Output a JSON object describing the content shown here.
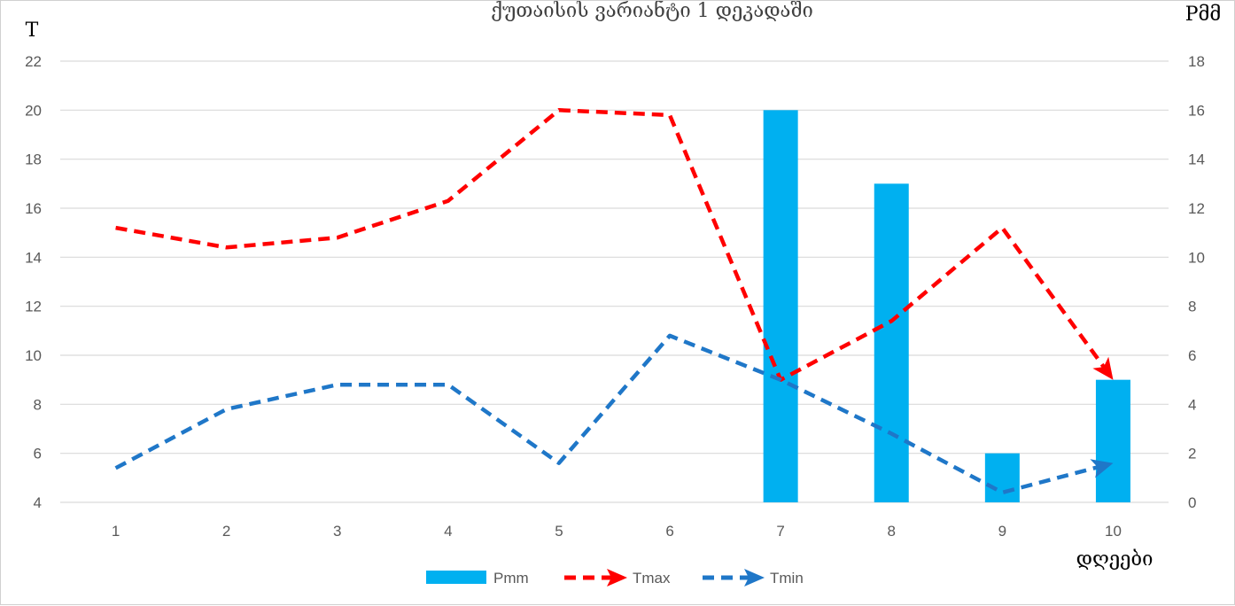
{
  "chart_data": {
    "type": "bar",
    "title": "ქუთაისის ვარიანტი 1 დეკადაში",
    "xlabel": "დღეები",
    "ylabel": "T",
    "y2label": "Pმმ",
    "categories": [
      "1",
      "2",
      "3",
      "4",
      "5",
      "6",
      "7",
      "8",
      "9",
      "10"
    ],
    "ylim": [
      4,
      22
    ],
    "yticks": [
      4,
      6,
      8,
      10,
      12,
      14,
      16,
      18,
      20,
      22
    ],
    "y2lim": [
      0,
      18
    ],
    "y2ticks": [
      0,
      2,
      4,
      6,
      8,
      10,
      12,
      14,
      16,
      18
    ],
    "grid": true,
    "legend_position": "bottom",
    "series": [
      {
        "name": "Pmm",
        "type": "bar",
        "axis": "right",
        "color": "#00b0f0",
        "values": [
          0,
          0,
          0,
          0,
          0,
          0,
          16,
          13,
          2,
          5
        ]
      },
      {
        "name": "Tmax",
        "type": "line",
        "style": "dashed-arrow",
        "axis": "left",
        "color": "#ff0000",
        "values": [
          15.2,
          14.4,
          14.8,
          16.3,
          20.0,
          19.8,
          9.0,
          11.4,
          15.2,
          9.0
        ]
      },
      {
        "name": "Tmin",
        "type": "line",
        "style": "dashed-arrow",
        "axis": "left",
        "color": "#1f77c8",
        "values": [
          5.4,
          7.8,
          8.8,
          8.8,
          5.6,
          10.8,
          9.0,
          6.8,
          4.4,
          5.6
        ]
      }
    ]
  }
}
